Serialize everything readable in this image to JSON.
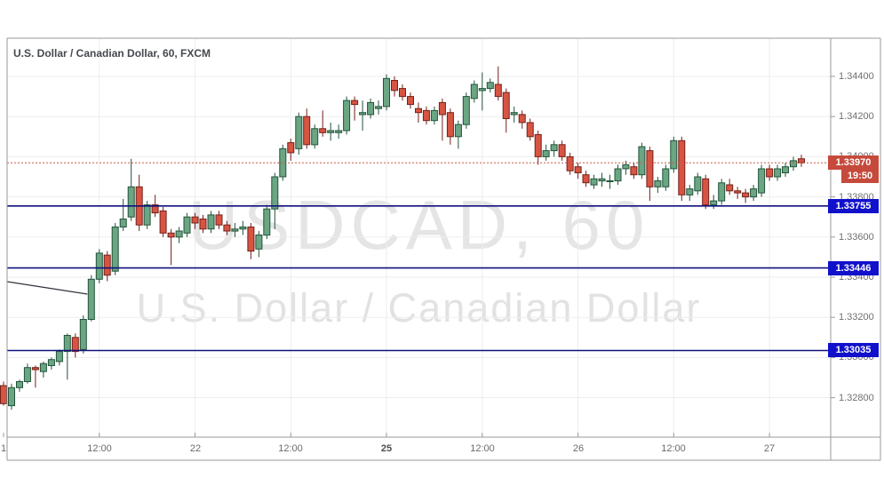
{
  "header": {
    "title": "U.S. Dollar / Canadian Dollar, 60, FXCM"
  },
  "watermark": {
    "line1": "USDCAD, 60",
    "line2": "U.S. Dollar / Canadian Dollar"
  },
  "price_axis": {
    "labels": [
      "1.34400",
      "1.34200",
      "1.34000",
      "1.33800",
      "1.33600",
      "1.33400",
      "1.33200",
      "1.33000",
      "1.32800"
    ]
  },
  "time_axis": {
    "labels": [
      {
        "text": "1",
        "index": 0,
        "bold": false
      },
      {
        "text": "12:00",
        "index": 12,
        "bold": false
      },
      {
        "text": "22",
        "index": 24,
        "bold": false
      },
      {
        "text": "12:00",
        "index": 36,
        "bold": false
      },
      {
        "text": "25",
        "index": 48,
        "bold": true
      },
      {
        "text": "12:00",
        "index": 60,
        "bold": false
      },
      {
        "text": "26",
        "index": 72,
        "bold": false
      },
      {
        "text": "12:00",
        "index": 84,
        "bold": false
      },
      {
        "text": "27",
        "index": 96,
        "bold": false
      }
    ]
  },
  "price_tags": {
    "current": {
      "text": "1.33970",
      "value": 1.3397
    },
    "countdown": {
      "text": "19:50"
    },
    "levels": [
      {
        "text": "1.33755",
        "value": 1.33755
      },
      {
        "text": "1.33446",
        "value": 1.33446
      },
      {
        "text": "1.33035",
        "value": 1.33035
      }
    ]
  },
  "chart_data": {
    "type": "candlestick",
    "symbol": "USDCAD",
    "interval": "60",
    "exchange": "FXCM",
    "title": "U.S. Dollar / Canadian Dollar, 60, FXCM",
    "y_axis": {
      "min": 1.3272,
      "max": 1.3452,
      "tick_step": 0.002,
      "ticks": [
        1.344,
        1.342,
        1.34,
        1.338,
        1.336,
        1.334,
        1.332,
        1.33,
        1.328
      ]
    },
    "x_axis": {
      "tick_labels": [
        "1",
        "12:00",
        "22",
        "12:00",
        "25",
        "12:00",
        "26",
        "12:00",
        "27"
      ],
      "tick_candle_indices": [
        0,
        12,
        24,
        36,
        48,
        60,
        72,
        84,
        96
      ]
    },
    "grid": true,
    "current_price": 1.3397,
    "countdown_to_bar_close": "19:50",
    "horizontal_lines": [
      {
        "value": 1.3397,
        "style": "dotted",
        "role": "current-price"
      },
      {
        "value": 1.33755,
        "style": "solid",
        "role": "support-resistance"
      },
      {
        "value": 1.33446,
        "style": "solid",
        "role": "support-resistance"
      },
      {
        "value": 1.33035,
        "style": "solid",
        "role": "support-resistance"
      }
    ],
    "trendline": {
      "from": {
        "index": 0.45,
        "price": 1.33378
      },
      "to": {
        "index": 10.5,
        "price": 1.33316
      }
    },
    "colors": {
      "up_fill": "#6ba583",
      "up_border": "#22543a",
      "down_fill": "#d75442",
      "down_border": "#73211a",
      "current_line": "#c5584a",
      "level_line": "#11117e",
      "current_tag_bg": "#c64a3c",
      "level_tag_bg": "#1111cc",
      "grid": "#ededed",
      "frame": "#9a9a9a",
      "axis_text": "#707070",
      "watermark": "#e5e5e5",
      "trendline": "#30343b"
    },
    "candles": [
      [
        1.3286,
        1.3288,
        1.3276,
        1.3277
      ],
      [
        1.3276,
        1.3287,
        1.3274,
        1.3285
      ],
      [
        1.3285,
        1.3289,
        1.3283,
        1.3288
      ],
      [
        1.3288,
        1.3297,
        1.3287,
        1.3295
      ],
      [
        1.3295,
        1.3296,
        1.3285,
        1.3294
      ],
      [
        1.3293,
        1.3298,
        1.329,
        1.3297
      ],
      [
        1.3296,
        1.33,
        1.3294,
        1.3299
      ],
      [
        1.3298,
        1.3304,
        1.3296,
        1.3303
      ],
      [
        1.3303,
        1.3312,
        1.3289,
        1.3311
      ],
      [
        1.331,
        1.3312,
        1.33,
        1.3303
      ],
      [
        1.3304,
        1.3321,
        1.3302,
        1.3319
      ],
      [
        1.3319,
        1.3341,
        1.3318,
        1.3339
      ],
      [
        1.3339,
        1.3354,
        1.3337,
        1.3352
      ],
      [
        1.3351,
        1.3353,
        1.3338,
        1.3341
      ],
      [
        1.3343,
        1.3367,
        1.3341,
        1.3365
      ],
      [
        1.3365,
        1.3379,
        1.3363,
        1.3369
      ],
      [
        1.337,
        1.3399,
        1.3368,
        1.3385
      ],
      [
        1.3385,
        1.3391,
        1.3363,
        1.3366
      ],
      [
        1.3366,
        1.3378,
        1.3364,
        1.3376
      ],
      [
        1.3376,
        1.3381,
        1.337,
        1.3372
      ],
      [
        1.3373,
        1.3375,
        1.336,
        1.3362
      ],
      [
        1.3362,
        1.3364,
        1.3346,
        1.336
      ],
      [
        1.336,
        1.3365,
        1.3357,
        1.3363
      ],
      [
        1.3362,
        1.3372,
        1.336,
        1.337
      ],
      [
        1.337,
        1.3372,
        1.3364,
        1.3367
      ],
      [
        1.3369,
        1.3371,
        1.3362,
        1.3364
      ],
      [
        1.3364,
        1.3373,
        1.3362,
        1.3371
      ],
      [
        1.3371,
        1.3373,
        1.3364,
        1.3366
      ],
      [
        1.3366,
        1.3368,
        1.3361,
        1.3363
      ],
      [
        1.3363,
        1.3367,
        1.336,
        1.3364
      ],
      [
        1.3364,
        1.3368,
        1.3361,
        1.3365
      ],
      [
        1.3365,
        1.3367,
        1.3349,
        1.3353
      ],
      [
        1.3354,
        1.3363,
        1.335,
        1.3361
      ],
      [
        1.3361,
        1.3376,
        1.3359,
        1.3374
      ],
      [
        1.3374,
        1.3392,
        1.3364,
        1.339
      ],
      [
        1.339,
        1.3406,
        1.3388,
        1.3404
      ],
      [
        1.3407,
        1.3409,
        1.3398,
        1.3402
      ],
      [
        1.3404,
        1.3422,
        1.3401,
        1.342
      ],
      [
        1.342,
        1.3424,
        1.3404,
        1.3406
      ],
      [
        1.3406,
        1.3416,
        1.3404,
        1.3414
      ],
      [
        1.3414,
        1.3423,
        1.341,
        1.3412
      ],
      [
        1.3412,
        1.3417,
        1.3408,
        1.3413
      ],
      [
        1.3412,
        1.3416,
        1.3409,
        1.3413
      ],
      [
        1.3413,
        1.343,
        1.3411,
        1.3428
      ],
      [
        1.3428,
        1.343,
        1.3418,
        1.3426
      ],
      [
        1.3421,
        1.3428,
        1.3413,
        1.3422
      ],
      [
        1.3421,
        1.3429,
        1.3419,
        1.3427
      ],
      [
        1.3424,
        1.3428,
        1.3421,
        1.3425
      ],
      [
        1.3425,
        1.3441,
        1.3423,
        1.3439
      ],
      [
        1.3438,
        1.344,
        1.343,
        1.3433
      ],
      [
        1.3434,
        1.3436,
        1.3428,
        1.343
      ],
      [
        1.343,
        1.3432,
        1.3424,
        1.3426
      ],
      [
        1.3424,
        1.3427,
        1.3417,
        1.3422
      ],
      [
        1.3423,
        1.3425,
        1.3416,
        1.3418
      ],
      [
        1.3418,
        1.3425,
        1.3416,
        1.3423
      ],
      [
        1.3427,
        1.3429,
        1.3408,
        1.3421
      ],
      [
        1.3422,
        1.3424,
        1.3406,
        1.341
      ],
      [
        1.341,
        1.3418,
        1.3404,
        1.3416
      ],
      [
        1.3416,
        1.3432,
        1.3414,
        1.343
      ],
      [
        1.3429,
        1.3438,
        1.3427,
        1.3436
      ],
      [
        1.3433,
        1.3442,
        1.3423,
        1.3434
      ],
      [
        1.3434,
        1.3439,
        1.3432,
        1.3437
      ],
      [
        1.3436,
        1.3445,
        1.3428,
        1.343
      ],
      [
        1.3432,
        1.3434,
        1.3412,
        1.3419
      ],
      [
        1.3421,
        1.3425,
        1.3417,
        1.3422
      ],
      [
        1.3421,
        1.3423,
        1.3414,
        1.3417
      ],
      [
        1.3417,
        1.3419,
        1.3408,
        1.341
      ],
      [
        1.3411,
        1.3413,
        1.3396,
        1.34
      ],
      [
        1.34,
        1.3406,
        1.3398,
        1.3403
      ],
      [
        1.3403,
        1.3408,
        1.34,
        1.3406
      ],
      [
        1.3406,
        1.3408,
        1.3398,
        1.34
      ],
      [
        1.34,
        1.3402,
        1.3391,
        1.3393
      ],
      [
        1.3395,
        1.3397,
        1.3389,
        1.3392
      ],
      [
        1.3391,
        1.3393,
        1.3385,
        1.3387
      ],
      [
        1.3386,
        1.3391,
        1.3384,
        1.3389
      ],
      [
        1.3388,
        1.3392,
        1.3385,
        1.3389
      ],
      [
        1.3388,
        1.3391,
        1.3384,
        1.3388
      ],
      [
        1.3388,
        1.3396,
        1.3386,
        1.3394
      ],
      [
        1.3394,
        1.3398,
        1.3391,
        1.3396
      ],
      [
        1.3395,
        1.3397,
        1.3389,
        1.3391
      ],
      [
        1.3391,
        1.3407,
        1.3389,
        1.3405
      ],
      [
        1.3403,
        1.3405,
        1.3378,
        1.3385
      ],
      [
        1.3385,
        1.339,
        1.3382,
        1.3388
      ],
      [
        1.3385,
        1.3396,
        1.3383,
        1.3394
      ],
      [
        1.3394,
        1.341,
        1.3392,
        1.3408
      ],
      [
        1.3408,
        1.341,
        1.3378,
        1.3381
      ],
      [
        1.3381,
        1.3386,
        1.3378,
        1.3384
      ],
      [
        1.3383,
        1.3392,
        1.3381,
        1.339
      ],
      [
        1.3389,
        1.3391,
        1.3374,
        1.3376
      ],
      [
        1.3376,
        1.3381,
        1.3374,
        1.3378
      ],
      [
        1.3378,
        1.3389,
        1.3376,
        1.3387
      ],
      [
        1.3386,
        1.3389,
        1.3381,
        1.3383
      ],
      [
        1.3383,
        1.3385,
        1.3379,
        1.3382
      ],
      [
        1.3382,
        1.3384,
        1.3377,
        1.338
      ],
      [
        1.338,
        1.3386,
        1.3378,
        1.3384
      ],
      [
        1.3382,
        1.3396,
        1.338,
        1.3394
      ],
      [
        1.3394,
        1.3396,
        1.3388,
        1.339
      ],
      [
        1.339,
        1.3396,
        1.3388,
        1.3394
      ],
      [
        1.3392,
        1.3397,
        1.339,
        1.3395
      ],
      [
        1.3395,
        1.34,
        1.3393,
        1.3398
      ],
      [
        1.3399,
        1.3401,
        1.3395,
        1.3397
      ]
    ]
  }
}
